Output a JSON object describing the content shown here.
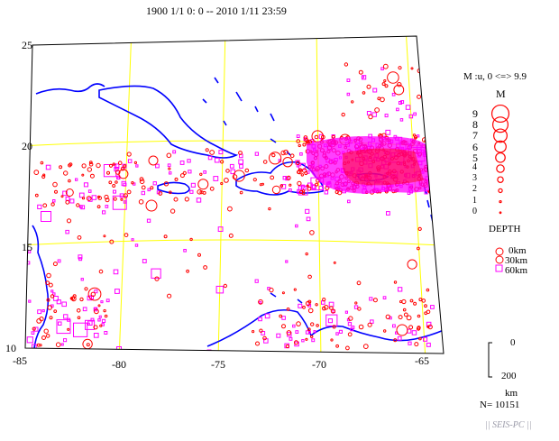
{
  "title": "1900 1/1 0: 0 -- 2010 1/11 23:59",
  "map": {
    "lon_labels": [
      "-85",
      "-80",
      "-75",
      "-70",
      "-65"
    ],
    "lat_labels": [
      "25",
      "20",
      "15",
      "10"
    ],
    "extent": {
      "lon_min": -85,
      "lon_max": -64.5,
      "lat_min": 10,
      "lat_max": 25
    },
    "colors": {
      "grid": "#ffff00",
      "coast": "#0000ff",
      "shallow": "#ff0000",
      "deep": "#ff00ff",
      "frame": "#000000"
    }
  },
  "legend": {
    "magnitude_header": "M :u, 0 <=> 9.9",
    "magnitude_title": "M",
    "magnitudes": [
      "9",
      "8",
      "7",
      "6",
      "5",
      "4",
      "3",
      "2",
      "1",
      "0"
    ],
    "depth_title": "DEPTH",
    "depths": [
      {
        "label": "0km",
        "symbol": "red-circle"
      },
      {
        "label": "30km",
        "symbol": "red-circle"
      },
      {
        "label": "60km",
        "symbol": "magenta-square"
      }
    ],
    "depth_scale_top": "0",
    "depth_scale_bottom": "200",
    "depth_scale_unit": "km"
  },
  "event_count": "N= 10151",
  "footer": "|| SEIS-PC ||"
}
